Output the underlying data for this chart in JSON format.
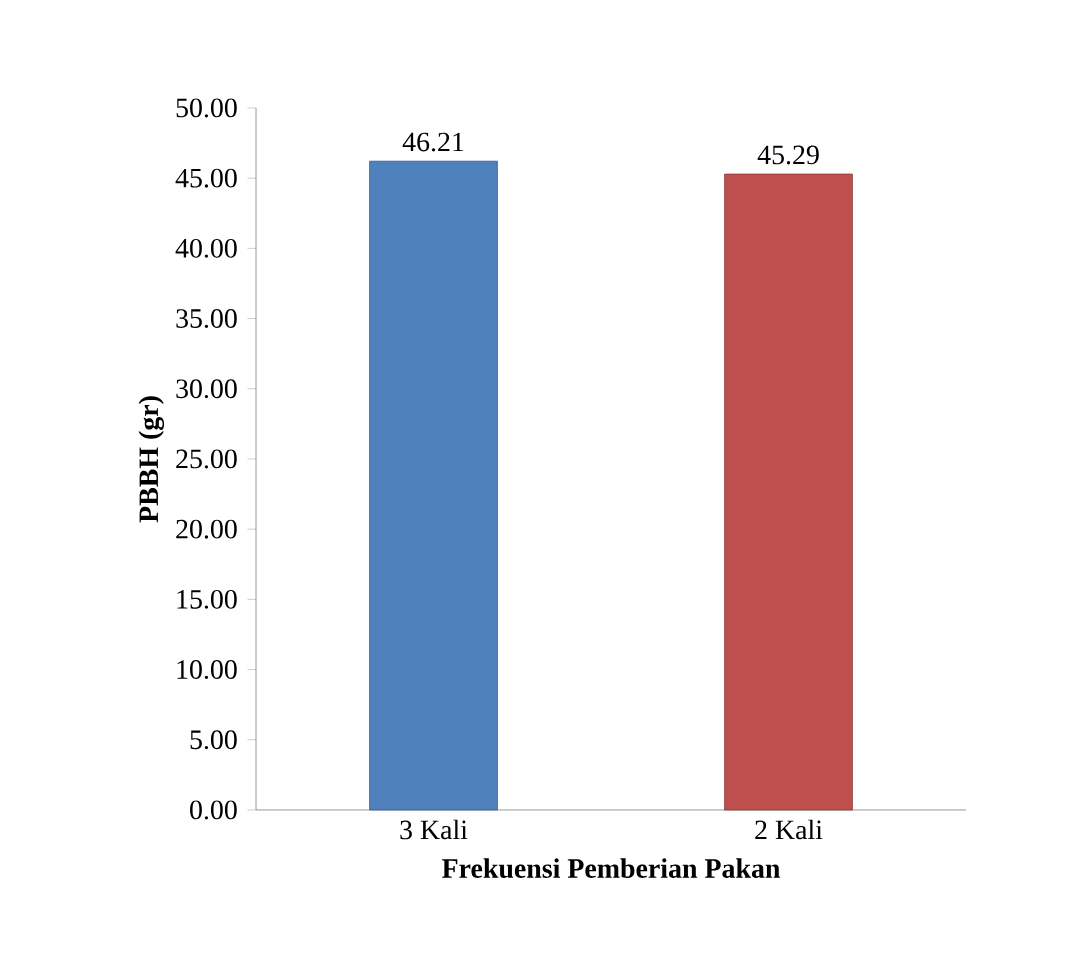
{
  "chart_data": {
    "type": "bar",
    "xlabel": "Frekuensi Pemberian Pakan",
    "ylabel": "PBBH (gr)",
    "categories": [
      "3 Kali",
      "2 Kali"
    ],
    "values": [
      46.21,
      45.29
    ],
    "value_labels": [
      "46.21",
      "45.29"
    ],
    "colors": [
      "#4f81bd",
      "#c0504d"
    ],
    "ylim": [
      0,
      50
    ],
    "yticks": [
      {
        "value": 0,
        "label": "0.00"
      },
      {
        "value": 5,
        "label": "5.00"
      },
      {
        "value": 10,
        "label": "10.00"
      },
      {
        "value": 15,
        "label": "15.00"
      },
      {
        "value": 20,
        "label": "20.00"
      },
      {
        "value": 25,
        "label": "25.00"
      },
      {
        "value": 30,
        "label": "30.00"
      },
      {
        "value": 35,
        "label": "35.00"
      },
      {
        "value": 40,
        "label": "40.00"
      },
      {
        "value": 45,
        "label": "45.00"
      },
      {
        "value": 50,
        "label": "50.00"
      }
    ],
    "grid": false
  }
}
